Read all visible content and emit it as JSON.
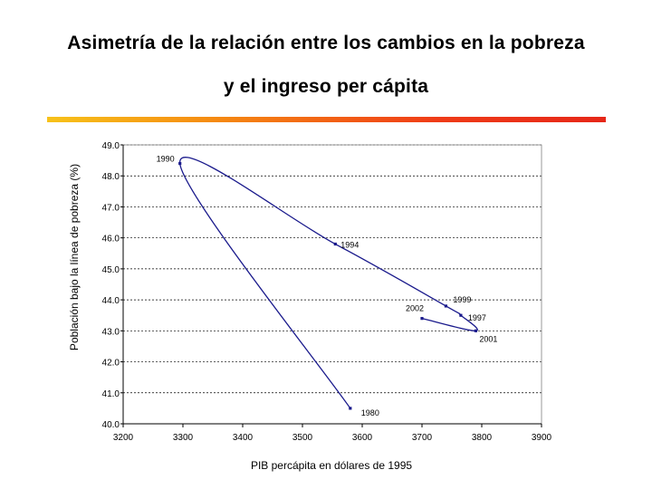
{
  "slide": {
    "title_line1": "Asimetría de la relación entre los cambios en la pobreza",
    "title_line2": "y el ingreso per cápita",
    "accent_colors": [
      "#f7c21a",
      "#f58a12",
      "#ef3b17",
      "#e62718"
    ]
  },
  "chart_data": {
    "type": "line",
    "xlabel": "PIB percápita en dólares de 1995",
    "ylabel": "Población bajo la línea de pobreza (%)",
    "xlim": [
      3200,
      3900
    ],
    "ylim": [
      40.0,
      49.0
    ],
    "x_ticks": [
      "3200",
      "3300",
      "3400",
      "3500",
      "3600",
      "3700",
      "3800",
      "3900"
    ],
    "y_ticks": [
      "40.0",
      "41.0",
      "42.0",
      "43.0",
      "44.0",
      "45.0",
      "46.0",
      "47.0",
      "48.0",
      "49.0"
    ],
    "grid": "horizontal dashed",
    "series": [
      {
        "color": "#1a1a8c",
        "points": [
          {
            "x": 3580,
            "y": 40.5,
            "label": "1980"
          },
          {
            "x": 3295,
            "y": 48.4,
            "label": "1990"
          },
          {
            "x": 3555,
            "y": 45.8,
            "label": "1994"
          },
          {
            "x": 3740,
            "y": 43.8,
            "label": "1999"
          },
          {
            "x": 3765,
            "y": 43.5,
            "label": "1997"
          },
          {
            "x": 3790,
            "y": 43.0,
            "label": "2001"
          },
          {
            "x": 3700,
            "y": 43.4,
            "label": "2002"
          }
        ]
      }
    ]
  }
}
